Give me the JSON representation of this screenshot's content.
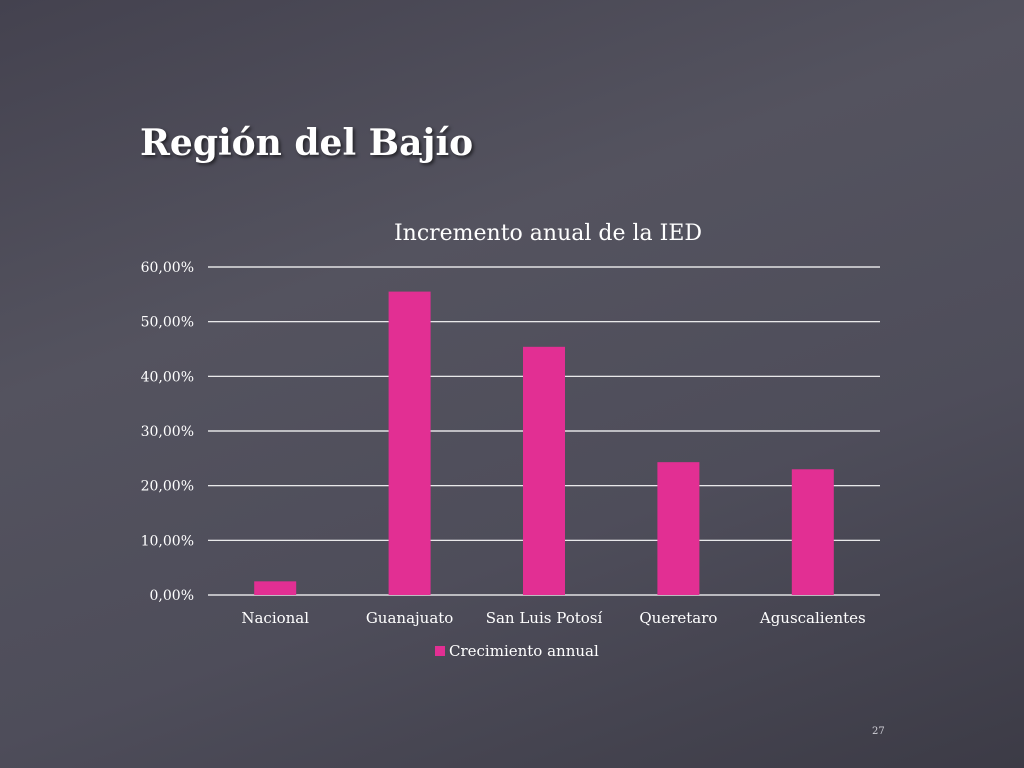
{
  "slide": {
    "title": "Región del Bajío",
    "page_number": "27"
  },
  "colors": {
    "bar": "#e22f93",
    "gridline": "#ffffff",
    "text": "#ffffff"
  },
  "chart_data": {
    "type": "bar",
    "title": "Incremento anual de la IED",
    "categories": [
      "Nacional",
      "Guanajuato",
      "San Luis Potosí",
      "Queretaro",
      "Aguscalientes"
    ],
    "series": [
      {
        "name": "Crecimiento annual",
        "values": [
          0.025,
          0.555,
          0.454,
          0.243,
          0.23
        ]
      }
    ],
    "y_ticks": [
      "0,00%",
      "10,00%",
      "20,00%",
      "30,00%",
      "40,00%",
      "50,00%",
      "60,00%"
    ],
    "ylim": [
      0,
      0.6
    ],
    "grid": true,
    "legend": "bottom"
  }
}
